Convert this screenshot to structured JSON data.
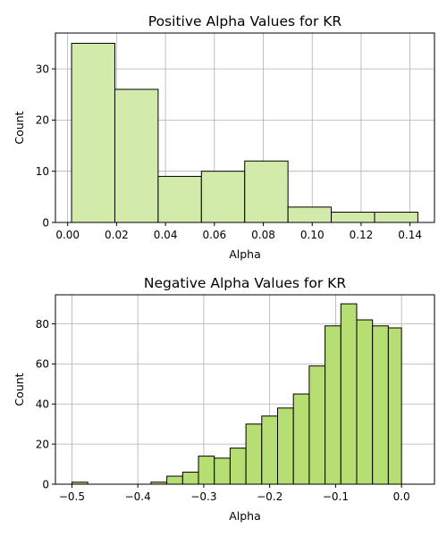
{
  "chart_data": [
    {
      "type": "bar",
      "title": "Positive Alpha Values for KR",
      "xlabel": "Alpha",
      "ylabel": "Count",
      "color": "#d2ebaa",
      "xlim": [
        -0.005,
        0.15
      ],
      "ylim": [
        0,
        37
      ],
      "xticks": [
        0.0,
        0.02,
        0.04,
        0.06,
        0.08,
        0.1,
        0.12,
        0.14
      ],
      "xtick_labels": [
        "0.00",
        "0.02",
        "0.04",
        "0.06",
        "0.08",
        "0.10",
        "0.12",
        "0.14"
      ],
      "yticks": [
        0,
        10,
        20,
        30
      ],
      "ytick_labels": [
        "0",
        "10",
        "20",
        "30"
      ],
      "grid": true,
      "bins": [
        {
          "x0": 0.0016,
          "x1": 0.0193,
          "count": 35
        },
        {
          "x0": 0.0193,
          "x1": 0.037,
          "count": 26
        },
        {
          "x0": 0.037,
          "x1": 0.0547,
          "count": 9
        },
        {
          "x0": 0.0547,
          "x1": 0.0724,
          "count": 10
        },
        {
          "x0": 0.0724,
          "x1": 0.0901,
          "count": 12
        },
        {
          "x0": 0.0901,
          "x1": 0.1078,
          "count": 3
        },
        {
          "x0": 0.1078,
          "x1": 0.1255,
          "count": 2
        },
        {
          "x0": 0.1255,
          "x1": 0.1432,
          "count": 2
        }
      ]
    },
    {
      "type": "bar",
      "title": "Negative Alpha Values for KR",
      "xlabel": "Alpha",
      "ylabel": "Count",
      "color": "#b7de72",
      "xlim": [
        -0.525,
        0.05
      ],
      "ylim": [
        0,
        94.5
      ],
      "xticks": [
        -0.5,
        -0.4,
        -0.3,
        -0.2,
        -0.1,
        0.0
      ],
      "xtick_labels": [
        "−0.5",
        "−0.4",
        "−0.3",
        "−0.2",
        "−0.1",
        "0.0"
      ],
      "yticks": [
        0,
        20,
        40,
        60,
        80
      ],
      "ytick_labels": [
        "0",
        "20",
        "40",
        "60",
        "80"
      ],
      "grid": true,
      "bins": [
        {
          "x0": -0.5,
          "x1": -0.476,
          "count": 1
        },
        {
          "x0": -0.476,
          "x1": -0.452,
          "count": 0
        },
        {
          "x0": -0.452,
          "x1": -0.428,
          "count": 0
        },
        {
          "x0": -0.428,
          "x1": -0.404,
          "count": 0
        },
        {
          "x0": -0.404,
          "x1": -0.38,
          "count": 0
        },
        {
          "x0": -0.38,
          "x1": -0.356,
          "count": 1
        },
        {
          "x0": -0.356,
          "x1": -0.332,
          "count": 4
        },
        {
          "x0": -0.332,
          "x1": -0.308,
          "count": 6
        },
        {
          "x0": -0.308,
          "x1": -0.284,
          "count": 14
        },
        {
          "x0": -0.284,
          "x1": -0.26,
          "count": 13
        },
        {
          "x0": -0.26,
          "x1": -0.236,
          "count": 18
        },
        {
          "x0": -0.236,
          "x1": -0.212,
          "count": 30
        },
        {
          "x0": -0.212,
          "x1": -0.188,
          "count": 34
        },
        {
          "x0": -0.188,
          "x1": -0.164,
          "count": 38
        },
        {
          "x0": -0.164,
          "x1": -0.14,
          "count": 45
        },
        {
          "x0": -0.14,
          "x1": -0.116,
          "count": 59
        },
        {
          "x0": -0.116,
          "x1": -0.092,
          "count": 79
        },
        {
          "x0": -0.092,
          "x1": -0.068,
          "count": 90
        },
        {
          "x0": -0.068,
          "x1": -0.044,
          "count": 82
        },
        {
          "x0": -0.044,
          "x1": -0.02,
          "count": 79
        },
        {
          "x0": -0.02,
          "x1": 0.0,
          "count": 78
        }
      ]
    }
  ]
}
